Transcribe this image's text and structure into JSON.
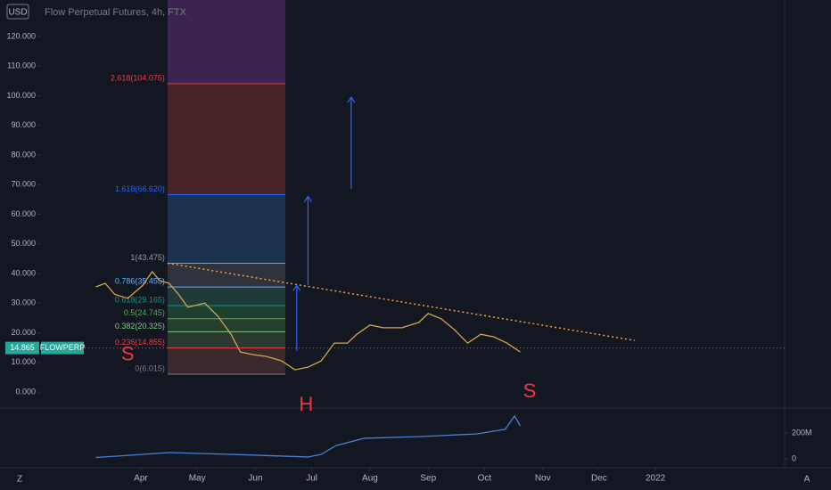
{
  "chart_data": [
    {
      "type": "line",
      "title": "Flow Perpetual Futures, 4h, FTX",
      "currency": "USD",
      "symbol": "FLOWPERP",
      "last_price": 14.865,
      "last_price_label": "14.865",
      "xlim": [
        38.3,
        433.8
      ],
      "xticks": [
        {
          "value": 91,
          "label": "Apr"
        },
        {
          "value": 121,
          "label": "May"
        },
        {
          "value": 152,
          "label": "Jun"
        },
        {
          "value": 182,
          "label": "Jul"
        },
        {
          "value": 213,
          "label": "Aug"
        },
        {
          "value": 244,
          "label": "Sep"
        },
        {
          "value": 274,
          "label": "Oct"
        },
        {
          "value": 305,
          "label": "Nov"
        },
        {
          "value": 335,
          "label": "Dec"
        },
        {
          "value": 365,
          "label": "2022"
        }
      ],
      "ylim": [
        -5.4,
        132.3
      ],
      "yticks": [
        {
          "value": 0,
          "label": "0.000"
        },
        {
          "value": 10,
          "label": "10.000"
        },
        {
          "value": 20,
          "label": "20.000"
        },
        {
          "value": 30,
          "label": "30.000"
        },
        {
          "value": 40,
          "label": "40.000"
        },
        {
          "value": 50,
          "label": "50.000"
        },
        {
          "value": 60,
          "label": "60.000"
        },
        {
          "value": 70,
          "label": "70.000"
        },
        {
          "value": 80,
          "label": "80.000"
        },
        {
          "value": 90,
          "label": "90.000"
        },
        {
          "value": 100,
          "label": "100.000"
        },
        {
          "value": 110,
          "label": "110.000"
        },
        {
          "value": 120,
          "label": "120.000"
        }
      ],
      "series": [
        {
          "color": "#d1a54a",
          "x": [
            67,
            72,
            77,
            84,
            92,
            97,
            101,
            106,
            111,
            116,
            125,
            132,
            139,
            144,
            151,
            158,
            166,
            173,
            180,
            187,
            194,
            201,
            206,
            213,
            220,
            230,
            239,
            244,
            251,
            258,
            265,
            272,
            279,
            286,
            293
          ],
          "values": [
            35.5,
            36.7,
            33,
            31.6,
            36,
            40.6,
            37.6,
            36.7,
            33,
            28.6,
            30,
            25.6,
            19.5,
            13.5,
            12.6,
            12,
            10.5,
            7.5,
            8.4,
            10.5,
            16.5,
            16.5,
            19.5,
            22.6,
            21.7,
            21.7,
            23.5,
            26.5,
            24.7,
            21,
            16.5,
            19.5,
            18.6,
            16.5,
            13.5
          ]
        }
      ],
      "fib_x": [
        105.2,
        167.9
      ],
      "fib_levels": [
        {
          "value": 6.015,
          "label": "0(6.015)",
          "color": "#787b86",
          "fill": "#3a2a2e"
        },
        {
          "value": 14.855,
          "label": "0.236(14.855)",
          "color": "#f23645",
          "fill": "#2a3a30"
        },
        {
          "value": 20.325,
          "label": "0.382(20.325)",
          "color": "#81c784",
          "fill": "#24402c"
        },
        {
          "value": 24.745,
          "label": "0.5(24.745)",
          "color": "#4caf50",
          "fill": "#1f4030"
        },
        {
          "value": 29.165,
          "label": "0.618(29.165)",
          "color": "#089981",
          "fill": "#203a3a"
        },
        {
          "value": 35.455,
          "label": "0.786(35.455)",
          "color": "#64b5f6",
          "fill": "#30333d"
        },
        {
          "value": 43.475,
          "label": "1(43.475)",
          "color": "#9598a1",
          "fill": "#1c3350"
        },
        {
          "value": 66.62,
          "label": "1.618(66.620)",
          "color": "#2962ff",
          "fill": "#482328"
        },
        {
          "value": 104.075,
          "label": "2.618(104.075)",
          "color": "#f23645",
          "fill": "#3b2450"
        }
      ],
      "trendline": {
        "x": [
          105.2,
          354
        ],
        "values": [
          43.475,
          17.4
        ],
        "color": "#f7a035"
      },
      "arrows": [
        {
          "x": 174,
          "values": [
            13.8,
            36
          ]
        },
        {
          "x": 180,
          "values": [
            36,
            66
          ]
        },
        {
          "x": 203,
          "values": [
            68.5,
            99.5
          ]
        }
      ],
      "arrow_color": "#2962ff",
      "annotations": [
        {
          "text": "S",
          "x": 84,
          "value": 12.5
        },
        {
          "text": "H",
          "x": 179,
          "value": -4.5
        },
        {
          "text": "S",
          "x": 298,
          "value": 0
        }
      ]
    },
    {
      "type": "line",
      "ylim": [
        -69000000,
        379000000
      ],
      "yticks": [
        {
          "value": 0,
          "label": "0"
        },
        {
          "value": 200000000,
          "label": "200M"
        }
      ],
      "series": [
        {
          "color": "#4a7fd4",
          "x": [
            67,
            106,
            140,
            180,
            187,
            195,
            210,
            240,
            270,
            285,
            290,
            293
          ],
          "values": [
            10000000,
            48000000,
            34000000,
            14000000,
            34000000,
            103000000,
            159000000,
            172000000,
            193000000,
            228000000,
            331000000,
            255000000
          ]
        }
      ]
    }
  ]
}
